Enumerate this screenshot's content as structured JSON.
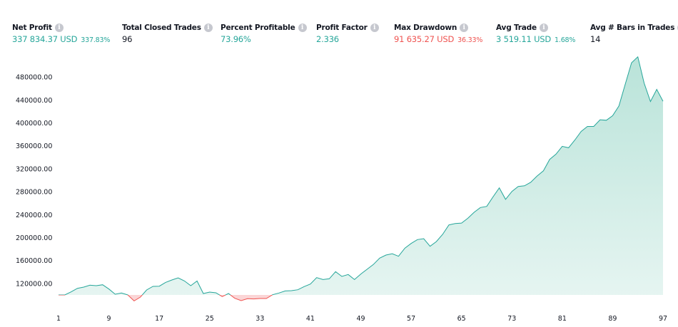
{
  "metrics": [
    {
      "label": "Net Profit",
      "value": "337 834.37 USD",
      "sub": "337.83%",
      "tone": "pos"
    },
    {
      "label": "Total Closed Trades",
      "value": "96",
      "sub": "",
      "tone": "plain"
    },
    {
      "label": "Percent Profitable",
      "value": "73.96%",
      "sub": "",
      "tone": "pos"
    },
    {
      "label": "Profit Factor",
      "value": "2.336",
      "sub": "",
      "tone": "pos"
    },
    {
      "label": "Max Drawdown",
      "value": "91 635.27 USD",
      "sub": "36.33%",
      "tone": "neg"
    },
    {
      "label": "Avg Trade",
      "value": "3 519.11 USD",
      "sub": "1.68%",
      "tone": "pos"
    },
    {
      "label": "Avg # Bars in Trades",
      "value": "14",
      "sub": "",
      "tone": "plain"
    }
  ],
  "info_icon": "info-circle-icon",
  "colors": {
    "positive": "#26a69a",
    "negative": "#ef5350",
    "positive_fill": "#b9e3d9",
    "negative_fill": "#fbd5d6"
  },
  "chart_data": {
    "type": "area",
    "baseline": 100000,
    "x_ticks": [
      "1",
      "9",
      "17",
      "25",
      "33",
      "41",
      "49",
      "57",
      "65",
      "73",
      "81",
      "89",
      "97"
    ],
    "y_ticks": [
      "120000.00",
      "160000.00",
      "200000.00",
      "240000.00",
      "280000.00",
      "320000.00",
      "360000.00",
      "400000.00",
      "440000.00",
      "480000.00"
    ],
    "ylim": [
      100000,
      515000
    ],
    "xlim": [
      1,
      97
    ],
    "grid": false,
    "x": [
      1,
      2,
      3,
      4,
      5,
      6,
      7,
      8,
      9,
      10,
      11,
      12,
      13,
      14,
      15,
      16,
      17,
      18,
      19,
      20,
      21,
      22,
      23,
      24,
      25,
      26,
      27,
      28,
      29,
      30,
      31,
      32,
      33,
      34,
      35,
      36,
      37,
      38,
      39,
      40,
      41,
      42,
      43,
      44,
      45,
      46,
      47,
      48,
      49,
      50,
      51,
      52,
      53,
      54,
      55,
      56,
      57,
      58,
      59,
      60,
      61,
      62,
      63,
      64,
      65,
      66,
      67,
      68,
      69,
      70,
      71,
      72,
      73,
      74,
      75,
      76,
      77,
      78,
      79,
      80,
      81,
      82,
      83,
      84,
      85,
      86,
      87,
      88,
      89,
      90,
      91,
      92,
      93,
      94,
      95,
      96,
      97
    ],
    "values": [
      100000,
      100000,
      105400,
      111600,
      113700,
      117000,
      116100,
      117800,
      110300,
      101200,
      103300,
      100000,
      89600,
      96300,
      108700,
      114900,
      115300,
      121900,
      126100,
      129800,
      124400,
      116100,
      124400,
      102500,
      105000,
      103700,
      97100,
      102500,
      94200,
      90100,
      93400,
      93000,
      93800,
      93800,
      100400,
      103300,
      107000,
      107500,
      109100,
      114500,
      119000,
      130200,
      126900,
      128200,
      140600,
      132300,
      135600,
      126900,
      136400,
      144700,
      153000,
      164200,
      169600,
      172000,
      167500,
      181600,
      189800,
      196500,
      198100,
      184900,
      193100,
      205600,
      222100,
      224600,
      225400,
      233700,
      244100,
      252400,
      254400,
      271000,
      286700,
      266800,
      280500,
      289200,
      290400,
      296600,
      307400,
      316500,
      336400,
      345500,
      359200,
      356700,
      370300,
      385200,
      393900,
      393900,
      405500,
      404700,
      412600,
      429500,
      467600,
      504900,
      515200,
      469700,
      437400,
      458500,
      437834
    ]
  }
}
